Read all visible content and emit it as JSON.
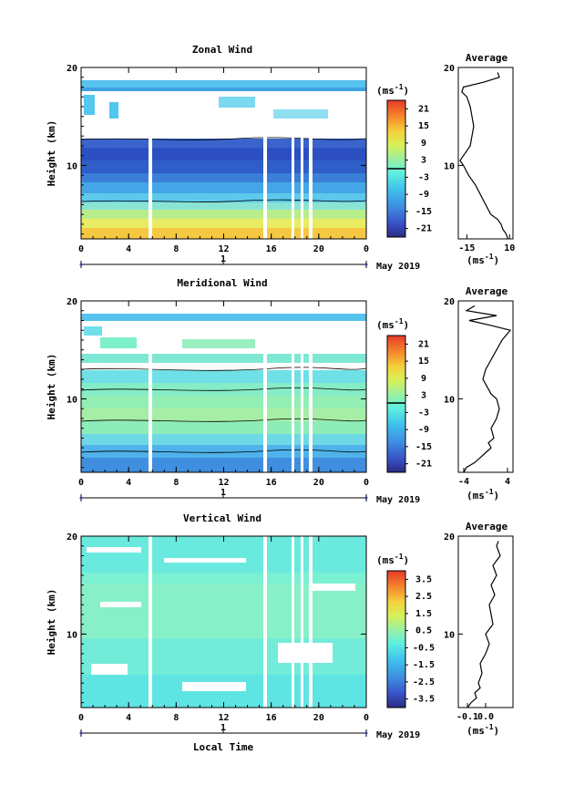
{
  "chart_data": [
    {
      "type": "heatmap",
      "title": "Zonal Wind",
      "ylabel": "Height (km)",
      "ylim": [
        2.5,
        20
      ],
      "yticks": [
        "10",
        "20"
      ],
      "xlim": [
        0,
        24
      ],
      "xticks": [
        "0",
        "4",
        "8",
        "12",
        "16",
        "20",
        "0"
      ],
      "day_axis_label": "1",
      "date_label": "May 2019",
      "colorbar": {
        "unit_prefix": "(ms",
        "unit_exp": "-1",
        "unit_suffix": ")",
        "range": [
          -24,
          24
        ],
        "labels": [
          "21",
          "15",
          "9",
          "3",
          "-3",
          "-9",
          "-15",
          "-21"
        ],
        "zero_marker": true
      },
      "profile": {
        "title": "Average",
        "xlim": [
          -20,
          12
        ],
        "xticks": [
          "-15",
          "10"
        ],
        "yticks": [
          "10",
          "20"
        ],
        "unit_prefix": "(ms",
        "unit_exp": "-1",
        "unit_suffix": ")",
        "heights": [
          2.5,
          3,
          3.5,
          4,
          4.5,
          5,
          6,
          7,
          8,
          9,
          10,
          10.5,
          11,
          11.5,
          12,
          13,
          14,
          15,
          16,
          17,
          17.5,
          18,
          18.5,
          19,
          19.5
        ],
        "values": [
          9,
          8,
          6,
          5,
          3,
          -1,
          -4,
          -7,
          -10,
          -14,
          -17,
          -19,
          -17,
          -15,
          -13,
          -12,
          -11,
          -12,
          -13,
          -15,
          -18,
          -17,
          -5,
          4,
          3
        ]
      }
    },
    {
      "type": "heatmap",
      "title": "Meridional Wind",
      "ylabel": "Height (km)",
      "ylim": [
        2.5,
        20
      ],
      "yticks": [
        "10",
        "20"
      ],
      "xlim": [
        0,
        24
      ],
      "xticks": [
        "0",
        "4",
        "8",
        "12",
        "16",
        "20",
        "0"
      ],
      "day_axis_label": "1",
      "date_label": "May 2019",
      "colorbar": {
        "unit_prefix": "(ms",
        "unit_exp": "-1",
        "unit_suffix": ")",
        "range": [
          -24,
          24
        ],
        "labels": [
          "21",
          "15",
          "9",
          "3",
          "-3",
          "-9",
          "-15",
          "-21"
        ],
        "zero_marker": true
      },
      "profile": {
        "title": "Average",
        "xlim": [
          -5,
          5
        ],
        "xticks": [
          "-4",
          "4"
        ],
        "yticks": [
          "10",
          "20"
        ],
        "unit_prefix": "(ms",
        "unit_exp": "-1",
        "unit_suffix": ")",
        "heights": [
          2.5,
          3,
          3.5,
          4,
          4.5,
          5,
          5.5,
          6,
          7,
          8,
          9,
          10,
          10.5,
          11,
          12,
          13,
          14,
          15,
          16,
          17,
          17.5,
          18,
          18.5,
          19,
          19.5
        ],
        "values": [
          -4,
          -3.5,
          -2,
          -1,
          0,
          1,
          0.5,
          1.5,
          1,
          2,
          2.5,
          2,
          1,
          0.5,
          -0.5,
          0,
          1,
          2,
          3,
          4.5,
          1,
          -3,
          2,
          -3.5,
          -2
        ]
      }
    },
    {
      "type": "heatmap",
      "title": "Vertical Wind",
      "ylabel": "Height (km)",
      "ylim": [
        2.5,
        20
      ],
      "yticks": [
        "10",
        "20"
      ],
      "xlim": [
        0,
        24
      ],
      "xticks": [
        "0",
        "4",
        "8",
        "12",
        "16",
        "20",
        "0"
      ],
      "day_axis_label": "1",
      "date_label": "May 2019",
      "xlabel": "Local Time",
      "colorbar": {
        "unit_prefix": "(ms",
        "unit_exp": "-1",
        "unit_suffix": ")",
        "range": [
          -4,
          4
        ],
        "labels": [
          "3.5",
          "2.5",
          "1.5",
          "0.5",
          "-0.5",
          "-1.5",
          "-2.5",
          "-3.5"
        ],
        "zero_marker": false
      },
      "profile": {
        "title": "Average",
        "xlim": [
          -0.15,
          0.15
        ],
        "xticks": [
          "-0.1",
          "0.0"
        ],
        "yticks": [
          "10",
          "20"
        ],
        "unit_prefix": "(ms",
        "unit_exp": "-1",
        "unit_suffix": ")",
        "heights": [
          2.5,
          3,
          3.5,
          4,
          4.5,
          5,
          6,
          7,
          8,
          9,
          10,
          11,
          12,
          13,
          14,
          15,
          16,
          17,
          18,
          19,
          19.5
        ],
        "values": [
          -0.1,
          -0.08,
          -0.05,
          -0.06,
          -0.03,
          -0.04,
          -0.02,
          -0.03,
          0.0,
          0.02,
          0.0,
          0.04,
          0.03,
          0.02,
          0.05,
          0.03,
          0.06,
          0.04,
          0.08,
          0.06,
          0.07
        ]
      }
    }
  ]
}
